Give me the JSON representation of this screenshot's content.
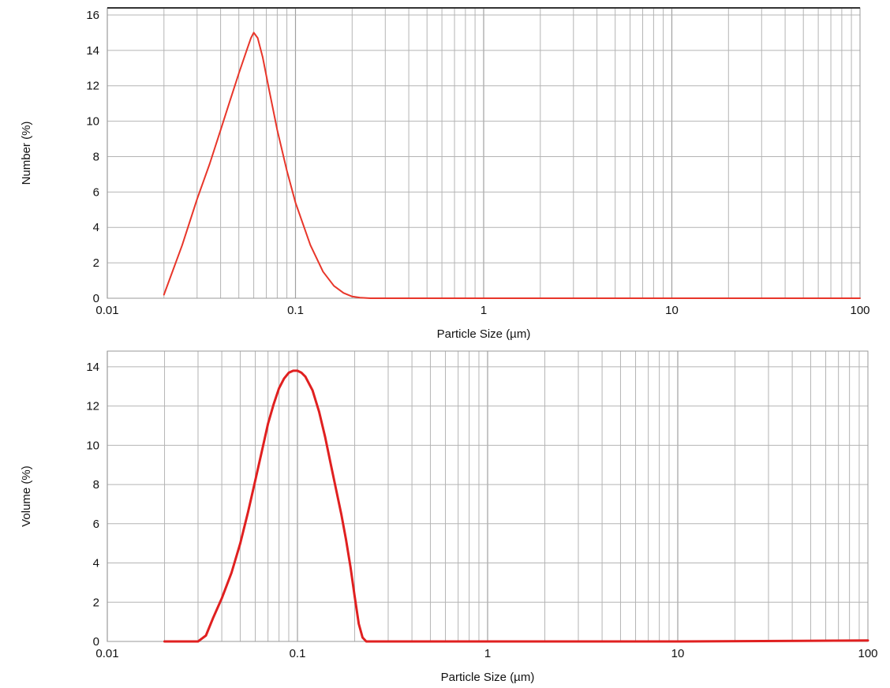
{
  "chart_data": [
    {
      "type": "line",
      "xscale": "log",
      "xlim": [
        0.01,
        100
      ],
      "ylim": [
        0,
        16.4
      ],
      "xlabel": "Particle Size (µm)",
      "ylabel": "Number (%)",
      "xticks": [
        {
          "value": 0.01,
          "label": "0.01"
        },
        {
          "value": 0.1,
          "label": "0.1"
        },
        {
          "value": 1,
          "label": "1"
        },
        {
          "value": 10,
          "label": "10"
        },
        {
          "value": 100,
          "label": "100"
        }
      ],
      "yticks": [
        {
          "value": 0,
          "label": "0"
        },
        {
          "value": 2,
          "label": "2"
        },
        {
          "value": 4,
          "label": "4"
        },
        {
          "value": 6,
          "label": "6"
        },
        {
          "value": 8,
          "label": "8"
        },
        {
          "value": 10,
          "label": "10"
        },
        {
          "value": 12,
          "label": "12"
        },
        {
          "value": 14,
          "label": "14"
        },
        {
          "value": 16,
          "label": "16"
        }
      ],
      "grid": true,
      "color": "#e8362a",
      "series": [
        {
          "x": [
            0.02,
            0.025,
            0.03,
            0.035,
            0.04,
            0.045,
            0.05,
            0.055,
            0.058,
            0.06,
            0.063,
            0.067,
            0.072,
            0.08,
            0.09,
            0.1,
            0.12,
            0.14,
            0.16,
            0.18,
            0.2,
            0.22,
            0.25,
            0.3,
            0.5,
            1,
            10,
            100
          ],
          "y": [
            0.2,
            3.0,
            5.6,
            7.6,
            9.5,
            11.2,
            12.7,
            14.0,
            14.7,
            15.0,
            14.7,
            13.6,
            11.9,
            9.5,
            7.2,
            5.4,
            3.0,
            1.5,
            0.7,
            0.3,
            0.1,
            0.03,
            0.0,
            0.0,
            0.0,
            0.0,
            0.0,
            0.0
          ]
        }
      ]
    },
    {
      "type": "line",
      "xscale": "log",
      "xlim": [
        0.01,
        100
      ],
      "ylim": [
        0,
        14.8
      ],
      "xlabel": "Particle Size (µm)",
      "ylabel": "Volume (%)",
      "xticks": [
        {
          "value": 0.01,
          "label": "0.01"
        },
        {
          "value": 0.1,
          "label": "0.1"
        },
        {
          "value": 1,
          "label": "1"
        },
        {
          "value": 10,
          "label": "10"
        },
        {
          "value": 100,
          "label": "100"
        }
      ],
      "yticks": [
        {
          "value": 0,
          "label": "0"
        },
        {
          "value": 2,
          "label": "2"
        },
        {
          "value": 4,
          "label": "4"
        },
        {
          "value": 6,
          "label": "6"
        },
        {
          "value": 8,
          "label": "8"
        },
        {
          "value": 10,
          "label": "10"
        },
        {
          "value": 12,
          "label": "12"
        },
        {
          "value": 14,
          "label": "14"
        }
      ],
      "grid": true,
      "color": "#e02020",
      "series": [
        {
          "x": [
            0.02,
            0.03,
            0.033,
            0.036,
            0.04,
            0.045,
            0.05,
            0.055,
            0.06,
            0.065,
            0.07,
            0.075,
            0.08,
            0.085,
            0.09,
            0.095,
            0.1,
            0.105,
            0.11,
            0.12,
            0.13,
            0.14,
            0.15,
            0.16,
            0.17,
            0.18,
            0.19,
            0.2,
            0.21,
            0.22,
            0.23,
            0.25,
            0.3,
            1,
            10,
            100
          ],
          "y": [
            0.0,
            0.0,
            0.3,
            1.2,
            2.2,
            3.5,
            5.0,
            6.6,
            8.2,
            9.7,
            11.1,
            12.1,
            12.9,
            13.4,
            13.7,
            13.8,
            13.8,
            13.7,
            13.5,
            12.8,
            11.7,
            10.4,
            9.0,
            7.7,
            6.5,
            5.2,
            3.8,
            2.3,
            0.9,
            0.2,
            0.0,
            0.0,
            0.0,
            0.0,
            0.0,
            0.05
          ]
        }
      ]
    }
  ]
}
